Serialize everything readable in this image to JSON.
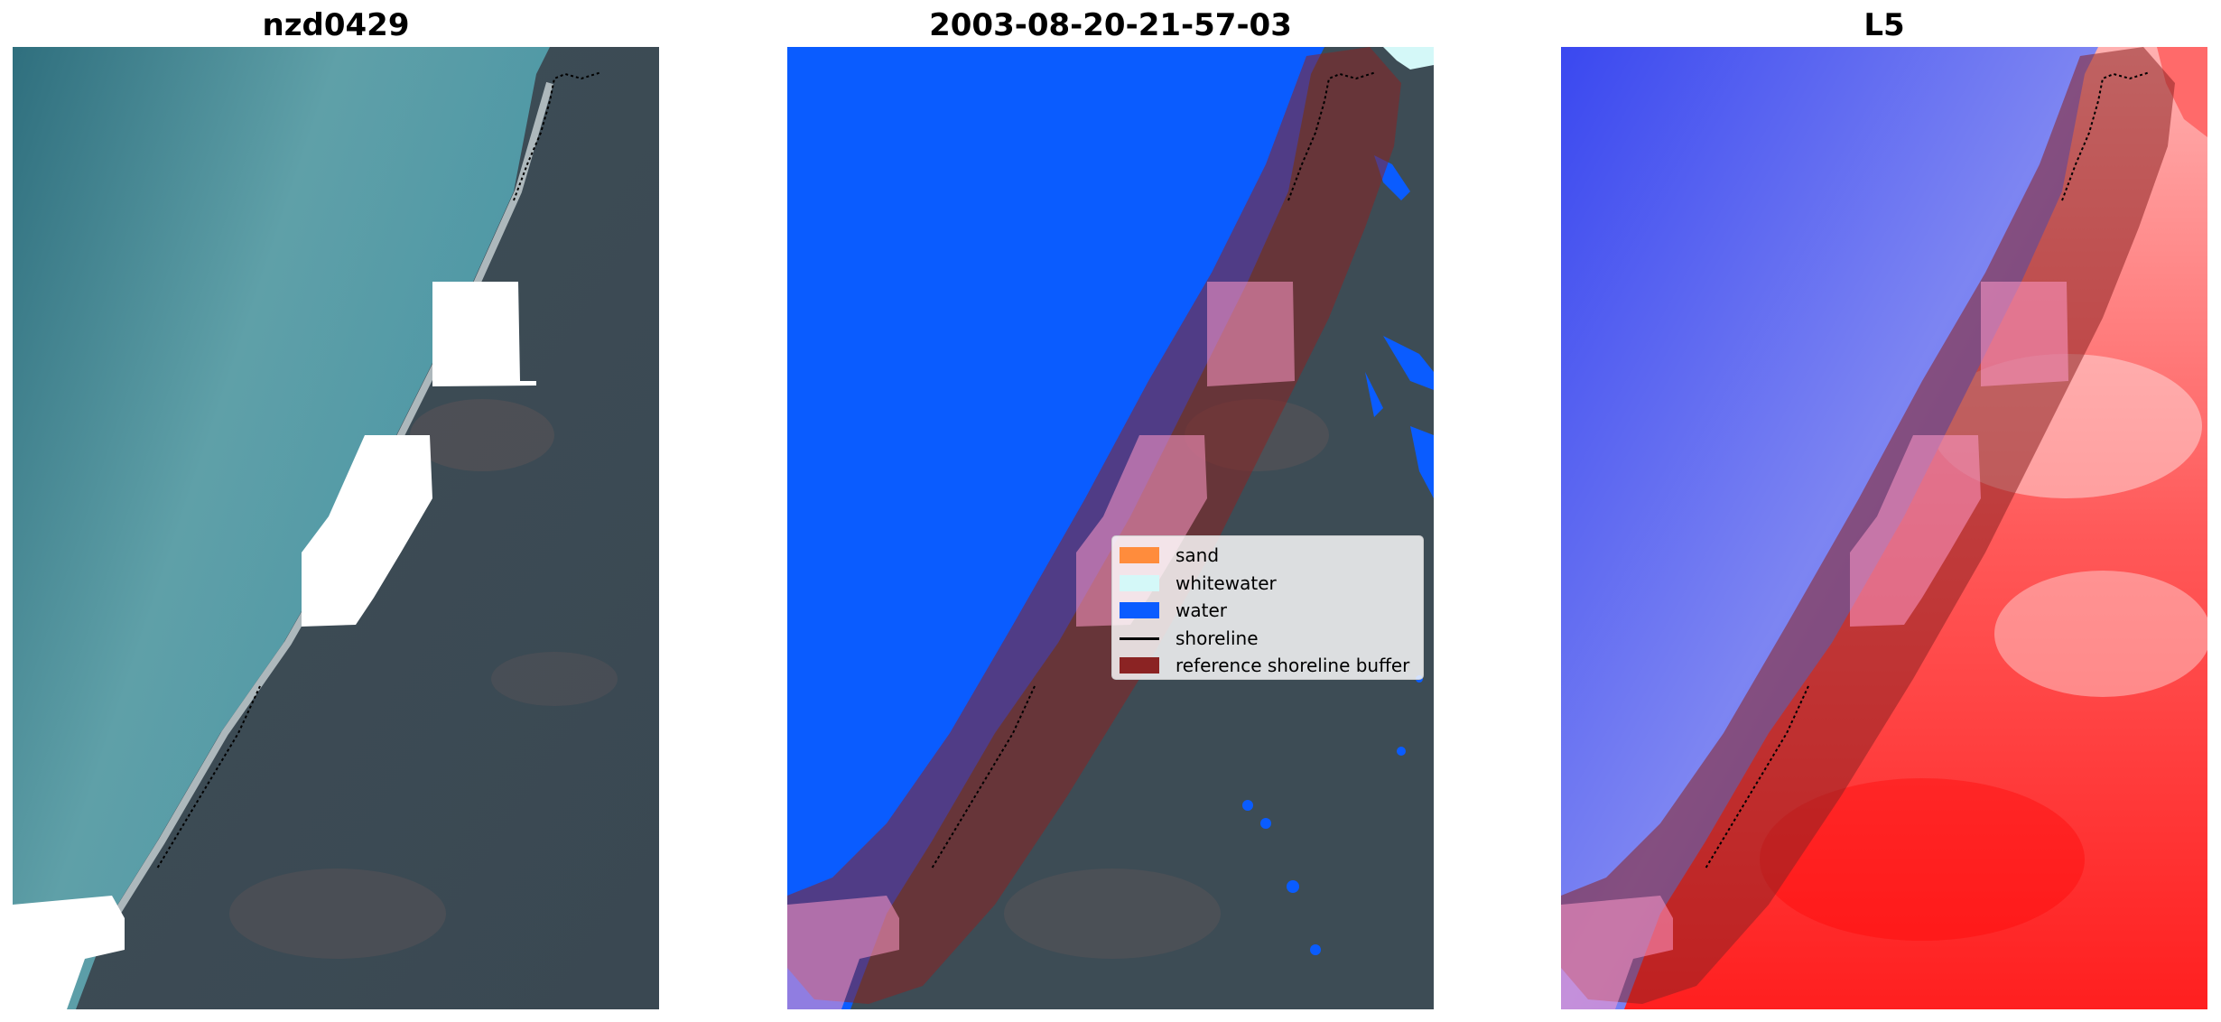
{
  "panels": [
    {
      "title": "nzd0429"
    },
    {
      "title": "2003-08-20-21-57-03"
    },
    {
      "title": "L5"
    }
  ],
  "legend": {
    "items": [
      {
        "label": "sand",
        "color": "#ff8c3c"
      },
      {
        "label": "whitewater",
        "color": "#d4f8f8"
      },
      {
        "label": "water",
        "color": "#0a5cff"
      },
      {
        "label": "shoreline",
        "color": "#000000"
      },
      {
        "label": "reference shoreline buffer",
        "color": "#8b2323"
      }
    ]
  },
  "colors": {
    "water_rgb": "#3f8a96",
    "land_rgb": "#3d4c55",
    "class_water": "#0a5cff",
    "buffer": "#8b2323",
    "index_water": "#2b3bf0",
    "index_land": "#ff1f1f"
  }
}
